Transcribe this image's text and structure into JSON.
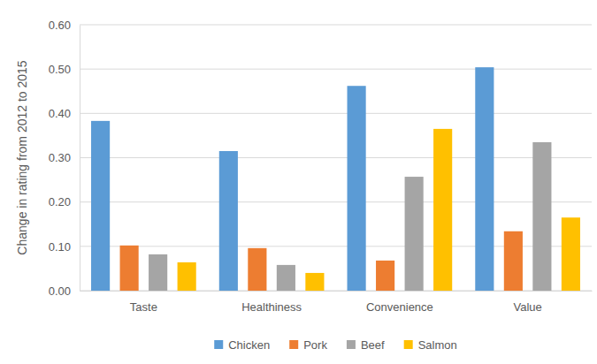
{
  "chart_data": {
    "type": "bar",
    "y_label": "Change in rating from 2012 to 2015",
    "categories": [
      "Taste",
      "Healthiness",
      "Convenience",
      "Value"
    ],
    "series": [
      {
        "name": "Chicken",
        "color": "#5b9bd5",
        "values": [
          0.383,
          0.315,
          0.462,
          0.504
        ]
      },
      {
        "name": "Pork",
        "color": "#ed7d31",
        "values": [
          0.102,
          0.096,
          0.068,
          0.134
        ]
      },
      {
        "name": "Beef",
        "color": "#a5a5a5",
        "values": [
          0.082,
          0.058,
          0.257,
          0.335
        ]
      },
      {
        "name": "Salmon",
        "color": "#ffc000",
        "values": [
          0.064,
          0.04,
          0.365,
          0.165
        ]
      }
    ],
    "ylim": [
      0,
      0.6
    ],
    "yticks": [
      {
        "value": 0,
        "label": "0.00"
      },
      {
        "value": 0.1,
        "label": "0.10"
      },
      {
        "value": 0.2,
        "label": "0.20"
      },
      {
        "value": 0.3,
        "label": "0.30"
      },
      {
        "value": 0.4,
        "label": "0.40"
      },
      {
        "value": 0.5,
        "label": "0.50"
      },
      {
        "value": 0.6,
        "label": "0.60"
      }
    ],
    "grid": true,
    "legend": "bottom"
  }
}
